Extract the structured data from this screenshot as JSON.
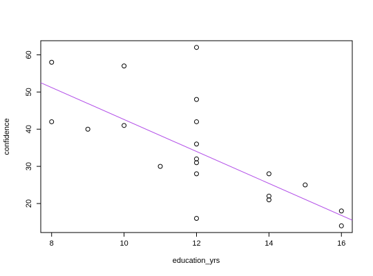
{
  "chart_data": {
    "type": "scatter",
    "title": "",
    "xlabel": "education_yrs",
    "ylabel": "confidence",
    "xlim": [
      7.7,
      16.3
    ],
    "ylim": [
      12.2,
      63.8
    ],
    "x_ticks": [
      8,
      10,
      12,
      14,
      16
    ],
    "y_ticks": [
      20,
      30,
      40,
      50,
      60
    ],
    "grid": false,
    "legend": "none",
    "point_color": "#000000",
    "fit_line_color": "#b24ee8",
    "points": [
      {
        "x": 8,
        "y": 58
      },
      {
        "x": 8,
        "y": 42
      },
      {
        "x": 9,
        "y": 40
      },
      {
        "x": 10,
        "y": 57
      },
      {
        "x": 10,
        "y": 41
      },
      {
        "x": 11,
        "y": 30
      },
      {
        "x": 12,
        "y": 62
      },
      {
        "x": 12,
        "y": 48
      },
      {
        "x": 12,
        "y": 42
      },
      {
        "x": 12,
        "y": 36
      },
      {
        "x": 12,
        "y": 32
      },
      {
        "x": 12,
        "y": 31
      },
      {
        "x": 12,
        "y": 28
      },
      {
        "x": 12,
        "y": 16
      },
      {
        "x": 14,
        "y": 28
      },
      {
        "x": 14,
        "y": 22
      },
      {
        "x": 14,
        "y": 21
      },
      {
        "x": 15,
        "y": 25
      },
      {
        "x": 16,
        "y": 18
      },
      {
        "x": 16,
        "y": 14
      }
    ],
    "fit_line": {
      "intercept": 85.6,
      "slope": -4.3
    }
  }
}
